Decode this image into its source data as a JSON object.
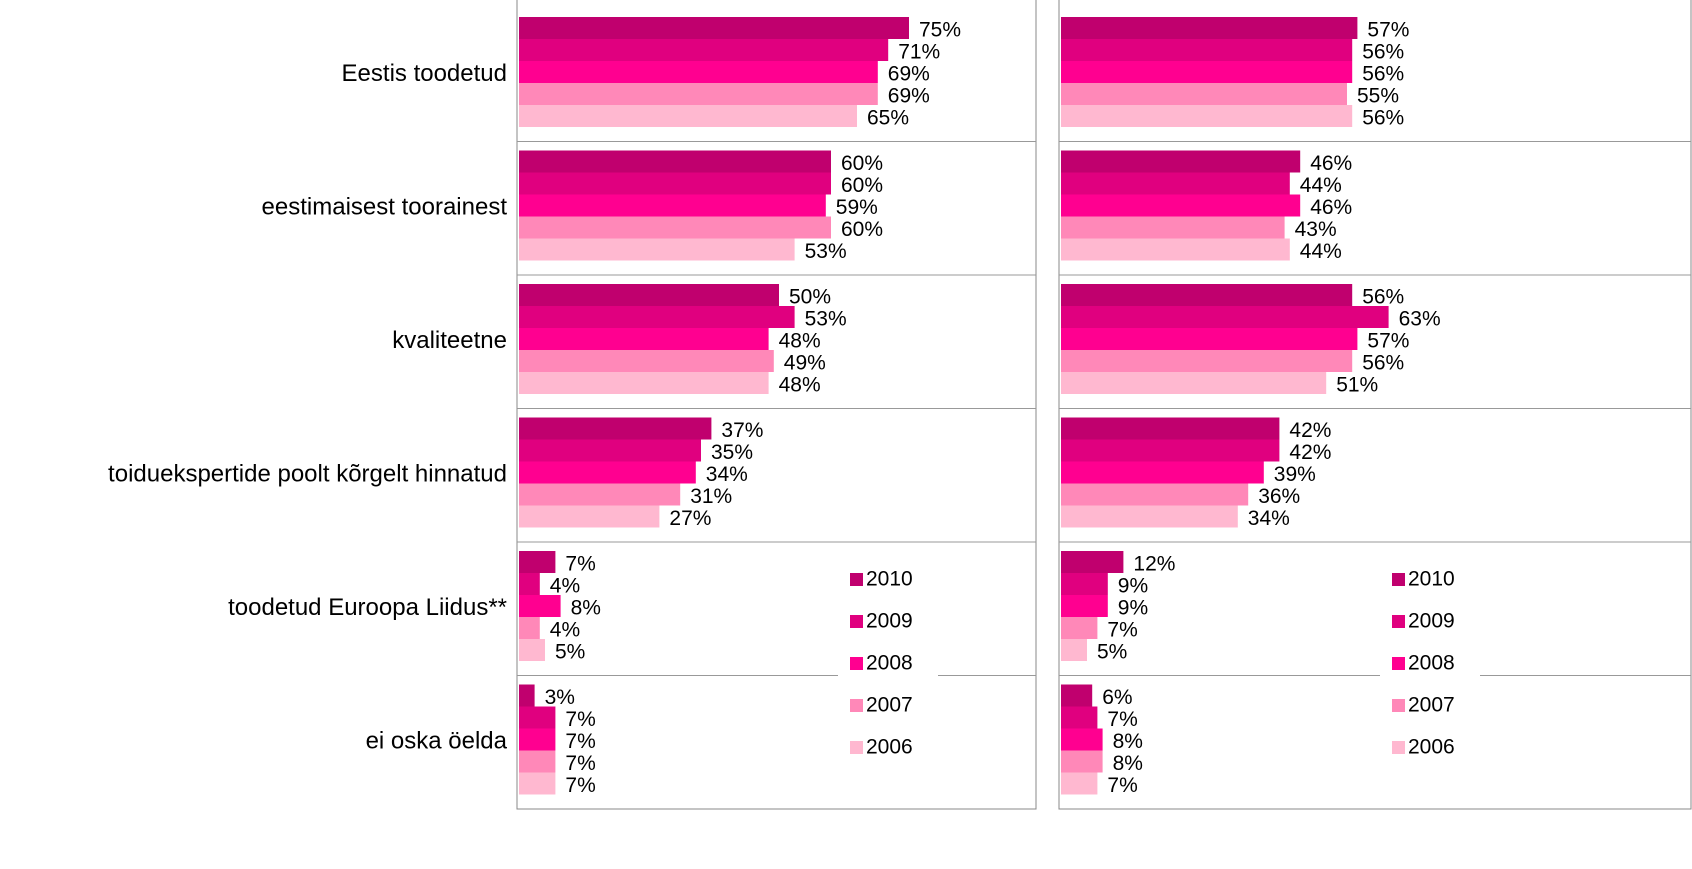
{
  "chart_data": [
    {
      "type": "bar",
      "orientation": "horizontal",
      "categories": [
        "Eestis toodetud",
        "eestimaisest toorainest",
        "kvaliteetne",
        "toiduekspertide poolt kõrgelt hinnatud",
        "toodetud Euroopa Liidus**",
        "ei oska öelda"
      ],
      "xlim": [
        0,
        100
      ],
      "series": [
        {
          "name": "2010",
          "color": "#c0006e",
          "values": [
            75,
            60,
            50,
            37,
            7,
            3
          ],
          "value_labels": [
            "75%",
            "60%",
            "50%",
            "37%",
            "7%",
            "3%"
          ]
        },
        {
          "name": "2009",
          "color": "#e0007f",
          "values": [
            71,
            60,
            53,
            35,
            4,
            7
          ],
          "value_labels": [
            "71%",
            "60%",
            "53%",
            "35%",
            "4%",
            "7%"
          ]
        },
        {
          "name": "2008",
          "color": "#ff0090",
          "values": [
            69,
            59,
            48,
            34,
            8,
            7
          ],
          "value_labels": [
            "69%",
            "59%",
            "48%",
            "34%",
            "8%",
            "7%"
          ]
        },
        {
          "name": "2007",
          "color": "#ff88b8",
          "values": [
            69,
            60,
            49,
            31,
            4,
            7
          ],
          "value_labels": [
            "69%",
            "60%",
            "49%",
            "31%",
            "4%",
            "7%"
          ]
        },
        {
          "name": "2006",
          "color": "#ffb8d0",
          "values": [
            65,
            53,
            48,
            27,
            5,
            7
          ],
          "value_labels": [
            "65%",
            "53%",
            "48%",
            "27%",
            "5%",
            "7%"
          ]
        }
      ]
    },
    {
      "type": "bar",
      "orientation": "horizontal",
      "xlim": [
        0,
        100
      ],
      "series": [
        {
          "name": "2010",
          "color": "#c0006e",
          "values": [
            57,
            46,
            56,
            42,
            12,
            6
          ],
          "value_labels": [
            "57%",
            "46%",
            "56%",
            "42%",
            "12%",
            "6%"
          ]
        },
        {
          "name": "2009",
          "color": "#e0007f",
          "values": [
            56,
            44,
            63,
            42,
            9,
            7
          ],
          "value_labels": [
            "56%",
            "44%",
            "63%",
            "42%",
            "9%",
            "7%"
          ]
        },
        {
          "name": "2008",
          "color": "#ff0090",
          "values": [
            56,
            46,
            57,
            39,
            9,
            8
          ],
          "value_labels": [
            "56%",
            "46%",
            "57%",
            "39%",
            "9%",
            "8%"
          ]
        },
        {
          "name": "2007",
          "color": "#ff88b8",
          "values": [
            55,
            43,
            56,
            36,
            7,
            8
          ],
          "value_labels": [
            "55%",
            "43%",
            "56%",
            "36%",
            "7%",
            "8%"
          ]
        },
        {
          "name": "2006",
          "color": "#ffb8d0",
          "values": [
            56,
            44,
            51,
            34,
            5,
            7
          ],
          "value_labels": [
            "56%",
            "44%",
            "51%",
            "34%",
            "5%",
            "7%"
          ]
        }
      ]
    }
  ]
}
